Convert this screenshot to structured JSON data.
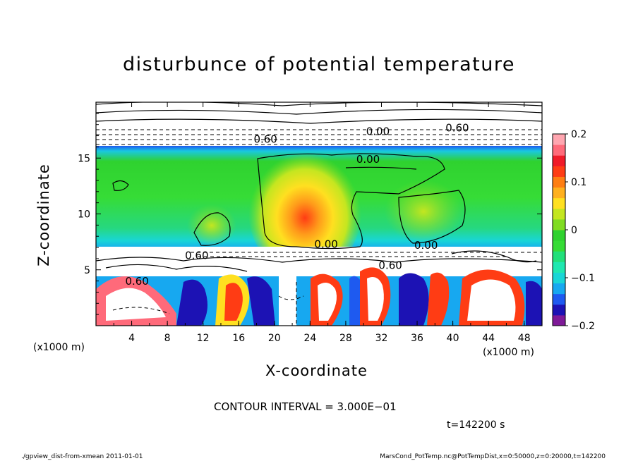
{
  "chart_data": {
    "type": "heatmap",
    "title": "disturbunce of potential temperature",
    "xlabel": "X-coordinate",
    "ylabel": "Z-coordinate",
    "x_unit_left": "(x1000 m)",
    "x_unit_right": "(x1000 m)",
    "xlim": [
      0,
      50
    ],
    "ylim": [
      0,
      20
    ],
    "x_ticks": [
      {
        "value": 4,
        "label": "4"
      },
      {
        "value": 8,
        "label": "8"
      },
      {
        "value": 12,
        "label": "12"
      },
      {
        "value": 16,
        "label": "16"
      },
      {
        "value": 20,
        "label": "20"
      },
      {
        "value": 24,
        "label": "24"
      },
      {
        "value": 28,
        "label": "28"
      },
      {
        "value": 32,
        "label": "32"
      },
      {
        "value": 36,
        "label": "36"
      },
      {
        "value": 40,
        "label": "40"
      },
      {
        "value": 44,
        "label": "44"
      },
      {
        "value": 48,
        "label": "48"
      }
    ],
    "y_ticks": [
      {
        "value": 5,
        "label": "5"
      },
      {
        "value": 10,
        "label": "10"
      },
      {
        "value": 15,
        "label": "15"
      }
    ],
    "colorbar": {
      "min": -0.2,
      "max": 0.2,
      "ticks": [
        {
          "value": 0.2,
          "label": "0.2"
        },
        {
          "value": 0.1,
          "label": "0.1"
        },
        {
          "value": 0,
          "label": "0"
        },
        {
          "value": -0.1,
          "label": "−0.1"
        },
        {
          "value": -0.2,
          "label": "−0.2"
        }
      ],
      "colors": [
        "#7f1a98",
        "#1c12b4",
        "#1e5af0",
        "#17a8f0",
        "#19d6d6",
        "#1fe8b0",
        "#22e07a",
        "#36dc36",
        "#2fd22f",
        "#80dc22",
        "#c4e620",
        "#ffe020",
        "#ffb01e",
        "#ff7e12",
        "#ff3c14",
        "#f01a28",
        "#ff6a7a",
        "#ffa6b0"
      ]
    },
    "contour_labels": [
      {
        "x": 25.8,
        "z": 7.1,
        "text": "0.00"
      },
      {
        "x": 37.0,
        "z": 7.0,
        "text": "0.00"
      },
      {
        "x": 30.5,
        "z": 14.7,
        "text": "0.00"
      },
      {
        "x": 11.3,
        "z": 6.1,
        "text": "0.60"
      },
      {
        "x": 33.0,
        "z": 5.2,
        "text": "0.60"
      },
      {
        "x": 4.6,
        "z": 3.8,
        "text": "0.60"
      },
      {
        "x": 31.6,
        "z": 17.2,
        "text": "0.00"
      },
      {
        "x": 40.5,
        "z": 17.5,
        "text": "0.60"
      },
      {
        "x": 19.0,
        "z": 16.5,
        "text": "0.60"
      }
    ]
  },
  "contour_interval": "CONTOUR INTERVAL = 3.000E−01",
  "timestamp": "t=142200 s",
  "footer_left": "./gpview_dist-from-xmean  2011-01-01",
  "footer_right": "MarsCond_PotTemp.nc@PotTempDist,x=0:50000,z=0:20000,t=142200"
}
